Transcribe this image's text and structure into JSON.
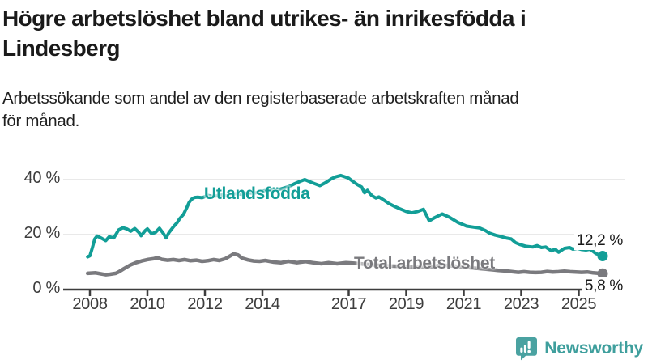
{
  "header": {
    "title": "Högre arbetslöshet bland utrikes- än inrikesfödda i\nLindesberg",
    "subtitle": "Arbetssökande som andel av den registerbaserade arbetskraften månad\nför månad."
  },
  "footer": {
    "brand": "Newsworthy",
    "brand_color": "#3f9f9d",
    "icon": "bar-chart-speech-bubble-icon"
  },
  "chart_data": {
    "type": "line",
    "title": "Högre arbetslöshet bland utrikes- än inrikesfödda i Lindesberg",
    "subtitle": "Arbetssökande som andel av den registerbaserade arbetskraften månad för månad.",
    "unit": "%",
    "x_axis": {
      "ticks": [
        2008,
        2010,
        2012,
        2014,
        2017,
        2019,
        2021,
        2023,
        2025
      ],
      "range": [
        2007.8,
        2026.2
      ]
    },
    "y_axis": {
      "ticks": [
        0,
        20,
        40
      ],
      "tick_suffix": " %",
      "range": [
        0,
        44
      ],
      "grid": true
    },
    "style": {
      "grid_color": "#e2e2e2",
      "axis_color": "#3d3d3d",
      "background": "#ffffff"
    },
    "legend_position": "inline-labels",
    "series": [
      {
        "name": "Utlandsfödda",
        "color": "#129e97",
        "end_label": "12,2 %",
        "end_value": 12.2,
        "points": [
          [
            2007.92,
            11.9
          ],
          [
            2008.0,
            12.3
          ],
          [
            2008.08,
            15.0
          ],
          [
            2008.17,
            18.4
          ],
          [
            2008.25,
            19.5
          ],
          [
            2008.42,
            18.6
          ],
          [
            2008.55,
            17.8
          ],
          [
            2008.67,
            19.2
          ],
          [
            2008.83,
            18.8
          ],
          [
            2009.0,
            21.7
          ],
          [
            2009.15,
            22.5
          ],
          [
            2009.3,
            22.0
          ],
          [
            2009.42,
            21.2
          ],
          [
            2009.56,
            22.2
          ],
          [
            2009.7,
            20.8
          ],
          [
            2009.78,
            19.6
          ],
          [
            2009.92,
            21.4
          ],
          [
            2010.0,
            22.1
          ],
          [
            2010.15,
            20.3
          ],
          [
            2010.28,
            20.8
          ],
          [
            2010.42,
            22.3
          ],
          [
            2010.55,
            20.5
          ],
          [
            2010.65,
            18.8
          ],
          [
            2010.75,
            20.7
          ],
          [
            2010.9,
            22.8
          ],
          [
            2011.03,
            24.3
          ],
          [
            2011.12,
            25.8
          ],
          [
            2011.25,
            27.3
          ],
          [
            2011.37,
            29.8
          ],
          [
            2011.45,
            31.7
          ],
          [
            2011.53,
            32.8
          ],
          [
            2011.64,
            33.5
          ],
          [
            2011.75,
            33.6
          ],
          [
            2011.9,
            33.4
          ],
          [
            2012.0,
            33.8
          ],
          [
            2012.1,
            34.3
          ],
          [
            2012.25,
            33.9
          ],
          [
            2012.4,
            34.1
          ],
          [
            2012.6,
            34.4
          ],
          [
            2012.75,
            34.0
          ],
          [
            2012.9,
            34.6
          ],
          [
            2013.1,
            34.9
          ],
          [
            2013.3,
            34.6
          ],
          [
            2013.5,
            35.2
          ],
          [
            2013.7,
            35.0
          ],
          [
            2013.9,
            35.6
          ],
          [
            2014.1,
            36.0
          ],
          [
            2014.3,
            36.4
          ],
          [
            2014.5,
            36.2
          ],
          [
            2014.7,
            36.8
          ],
          [
            2014.9,
            37.4
          ],
          [
            2015.1,
            38.4
          ],
          [
            2015.3,
            39.3
          ],
          [
            2015.47,
            40.0
          ],
          [
            2015.65,
            39.2
          ],
          [
            2015.8,
            38.6
          ],
          [
            2016.0,
            37.8
          ],
          [
            2016.2,
            38.9
          ],
          [
            2016.4,
            40.3
          ],
          [
            2016.55,
            41.0
          ],
          [
            2016.72,
            41.5
          ],
          [
            2016.87,
            41.0
          ],
          [
            2017.0,
            40.5
          ],
          [
            2017.15,
            39.3
          ],
          [
            2017.3,
            38.2
          ],
          [
            2017.45,
            37.3
          ],
          [
            2017.55,
            35.2
          ],
          [
            2017.65,
            36.1
          ],
          [
            2017.8,
            34.2
          ],
          [
            2017.95,
            33.3
          ],
          [
            2018.05,
            33.7
          ],
          [
            2018.2,
            32.7
          ],
          [
            2018.4,
            31.3
          ],
          [
            2018.6,
            30.2
          ],
          [
            2018.8,
            29.3
          ],
          [
            2019.0,
            28.4
          ],
          [
            2019.2,
            27.9
          ],
          [
            2019.4,
            28.4
          ],
          [
            2019.6,
            29.2
          ],
          [
            2019.8,
            25.0
          ],
          [
            2020.0,
            26.2
          ],
          [
            2020.25,
            27.5
          ],
          [
            2020.5,
            26.3
          ],
          [
            2020.8,
            24.4
          ],
          [
            2021.1,
            23.1
          ],
          [
            2021.35,
            22.7
          ],
          [
            2021.55,
            22.4
          ],
          [
            2021.75,
            21.5
          ],
          [
            2021.9,
            20.5
          ],
          [
            2022.1,
            19.8
          ],
          [
            2022.3,
            19.3
          ],
          [
            2022.5,
            18.7
          ],
          [
            2022.65,
            18.4
          ],
          [
            2022.8,
            17.1
          ],
          [
            2022.95,
            16.4
          ],
          [
            2023.15,
            15.8
          ],
          [
            2023.4,
            15.5
          ],
          [
            2023.55,
            16.0
          ],
          [
            2023.7,
            15.3
          ],
          [
            2023.85,
            15.5
          ],
          [
            2024.05,
            14.1
          ],
          [
            2024.18,
            14.7
          ],
          [
            2024.3,
            13.6
          ],
          [
            2024.5,
            15.0
          ],
          [
            2024.68,
            15.3
          ],
          [
            2024.8,
            14.7
          ],
          [
            2024.95,
            15.0
          ],
          [
            2025.1,
            14.6
          ],
          [
            2025.25,
            14.4
          ],
          [
            2025.4,
            14.7
          ],
          [
            2025.6,
            13.1
          ],
          [
            2025.83,
            12.2
          ]
        ]
      },
      {
        "name": "Total arbetslöshet",
        "color": "#7a7a7e",
        "end_label": "5,8 %",
        "end_value": 5.8,
        "points": [
          [
            2007.92,
            5.9
          ],
          [
            2008.2,
            6.1
          ],
          [
            2008.4,
            5.7
          ],
          [
            2008.55,
            5.4
          ],
          [
            2008.7,
            5.6
          ],
          [
            2008.9,
            5.9
          ],
          [
            2009.0,
            6.4
          ],
          [
            2009.2,
            7.7
          ],
          [
            2009.4,
            8.9
          ],
          [
            2009.6,
            9.8
          ],
          [
            2009.8,
            10.4
          ],
          [
            2010.0,
            10.9
          ],
          [
            2010.2,
            11.2
          ],
          [
            2010.35,
            11.6
          ],
          [
            2010.5,
            11.0
          ],
          [
            2010.7,
            10.7
          ],
          [
            2010.9,
            10.9
          ],
          [
            2011.1,
            10.6
          ],
          [
            2011.3,
            10.9
          ],
          [
            2011.5,
            10.5
          ],
          [
            2011.7,
            10.7
          ],
          [
            2011.9,
            10.3
          ],
          [
            2012.1,
            10.5
          ],
          [
            2012.3,
            10.9
          ],
          [
            2012.5,
            10.6
          ],
          [
            2012.7,
            11.2
          ],
          [
            2012.85,
            12.1
          ],
          [
            2013.0,
            13.0
          ],
          [
            2013.15,
            12.6
          ],
          [
            2013.3,
            11.4
          ],
          [
            2013.5,
            10.8
          ],
          [
            2013.7,
            10.4
          ],
          [
            2013.9,
            10.3
          ],
          [
            2014.1,
            10.6
          ],
          [
            2014.4,
            10.0
          ],
          [
            2014.65,
            9.8
          ],
          [
            2014.9,
            10.3
          ],
          [
            2015.2,
            9.8
          ],
          [
            2015.5,
            10.2
          ],
          [
            2015.75,
            9.8
          ],
          [
            2016.05,
            9.4
          ],
          [
            2016.3,
            9.8
          ],
          [
            2016.6,
            9.4
          ],
          [
            2016.9,
            9.8
          ],
          [
            2017.2,
            9.6
          ],
          [
            2017.5,
            9.3
          ],
          [
            2017.8,
            9.0
          ],
          [
            2018.1,
            8.8
          ],
          [
            2018.4,
            8.6
          ],
          [
            2018.7,
            8.5
          ],
          [
            2019.0,
            8.3
          ],
          [
            2019.3,
            8.2
          ],
          [
            2019.6,
            8.0
          ],
          [
            2019.9,
            8.2
          ],
          [
            2020.2,
            8.9
          ],
          [
            2020.5,
            8.7
          ],
          [
            2020.8,
            8.4
          ],
          [
            2021.1,
            8.1
          ],
          [
            2021.4,
            7.8
          ],
          [
            2021.7,
            7.5
          ],
          [
            2022.0,
            7.2
          ],
          [
            2022.2,
            7.0
          ],
          [
            2022.45,
            6.8
          ],
          [
            2022.7,
            6.5
          ],
          [
            2022.9,
            6.3
          ],
          [
            2023.1,
            6.5
          ],
          [
            2023.3,
            6.3
          ],
          [
            2023.5,
            6.2
          ],
          [
            2023.7,
            6.3
          ],
          [
            2023.9,
            6.6
          ],
          [
            2024.1,
            6.4
          ],
          [
            2024.3,
            6.5
          ],
          [
            2024.5,
            6.7
          ],
          [
            2024.7,
            6.5
          ],
          [
            2024.9,
            6.4
          ],
          [
            2025.1,
            6.3
          ],
          [
            2025.3,
            6.4
          ],
          [
            2025.5,
            6.1
          ],
          [
            2025.83,
            5.8
          ]
        ]
      }
    ]
  }
}
